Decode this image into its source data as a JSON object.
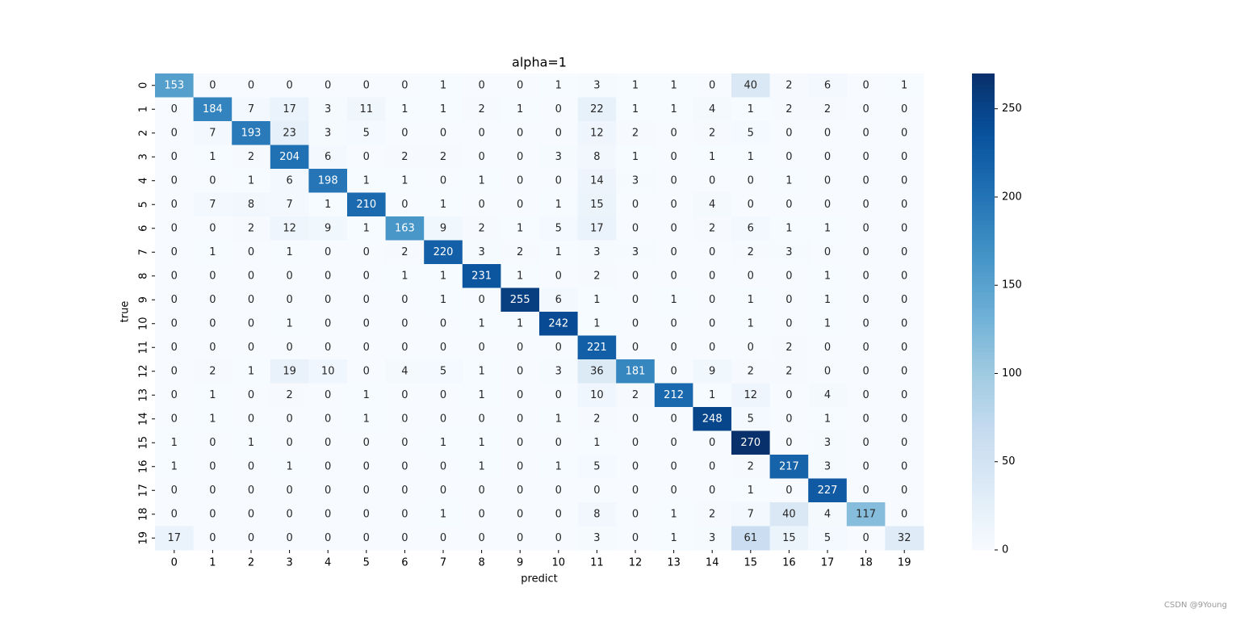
{
  "chart_data": {
    "type": "heatmap",
    "title": "alpha=1",
    "x_label": "predict",
    "y_label": "true",
    "x_categories": [
      "0",
      "1",
      "2",
      "3",
      "4",
      "5",
      "6",
      "7",
      "8",
      "9",
      "10",
      "11",
      "12",
      "13",
      "14",
      "15",
      "16",
      "17",
      "18",
      "19"
    ],
    "y_categories": [
      "0",
      "1",
      "2",
      "3",
      "4",
      "5",
      "6",
      "7",
      "8",
      "9",
      "10",
      "11",
      "12",
      "13",
      "14",
      "15",
      "16",
      "17",
      "18",
      "19"
    ],
    "values": [
      [
        153,
        0,
        0,
        0,
        0,
        0,
        0,
        1,
        0,
        0,
        1,
        3,
        1,
        1,
        0,
        40,
        2,
        6,
        0,
        1
      ],
      [
        0,
        184,
        7,
        17,
        3,
        11,
        1,
        1,
        2,
        1,
        0,
        22,
        1,
        1,
        4,
        1,
        2,
        2,
        0,
        0
      ],
      [
        0,
        7,
        193,
        23,
        3,
        5,
        0,
        0,
        0,
        0,
        0,
        12,
        2,
        0,
        2,
        5,
        0,
        0,
        0,
        0
      ],
      [
        0,
        1,
        2,
        204,
        6,
        0,
        2,
        2,
        0,
        0,
        3,
        8,
        1,
        0,
        1,
        1,
        0,
        0,
        0,
        0
      ],
      [
        0,
        0,
        1,
        6,
        198,
        1,
        1,
        0,
        1,
        0,
        0,
        14,
        3,
        0,
        0,
        0,
        1,
        0,
        0,
        0
      ],
      [
        0,
        7,
        8,
        7,
        1,
        210,
        0,
        1,
        0,
        0,
        1,
        15,
        0,
        0,
        4,
        0,
        0,
        0,
        0,
        0
      ],
      [
        0,
        0,
        2,
        12,
        9,
        1,
        163,
        9,
        2,
        1,
        5,
        17,
        0,
        0,
        2,
        6,
        1,
        1,
        0,
        0
      ],
      [
        0,
        1,
        0,
        1,
        0,
        0,
        2,
        220,
        3,
        2,
        1,
        3,
        3,
        0,
        0,
        2,
        3,
        0,
        0,
        0
      ],
      [
        0,
        0,
        0,
        0,
        0,
        0,
        1,
        1,
        231,
        1,
        0,
        2,
        0,
        0,
        0,
        0,
        0,
        1,
        0,
        0
      ],
      [
        0,
        0,
        0,
        0,
        0,
        0,
        0,
        1,
        0,
        255,
        6,
        1,
        0,
        1,
        0,
        1,
        0,
        1,
        0,
        0
      ],
      [
        0,
        0,
        0,
        1,
        0,
        0,
        0,
        0,
        1,
        1,
        242,
        1,
        0,
        0,
        0,
        1,
        0,
        1,
        0,
        0
      ],
      [
        0,
        0,
        0,
        0,
        0,
        0,
        0,
        0,
        0,
        0,
        0,
        221,
        0,
        0,
        0,
        0,
        2,
        0,
        0,
        0
      ],
      [
        0,
        2,
        1,
        19,
        10,
        0,
        4,
        5,
        1,
        0,
        3,
        36,
        181,
        0,
        9,
        2,
        2,
        0,
        0,
        0
      ],
      [
        0,
        1,
        0,
        2,
        0,
        1,
        0,
        0,
        1,
        0,
        0,
        10,
        2,
        212,
        1,
        12,
        0,
        4,
        0,
        0
      ],
      [
        0,
        1,
        0,
        0,
        0,
        1,
        0,
        0,
        0,
        0,
        1,
        2,
        0,
        0,
        248,
        5,
        0,
        1,
        0,
        0
      ],
      [
        1,
        0,
        1,
        0,
        0,
        0,
        0,
        1,
        1,
        0,
        0,
        1,
        0,
        0,
        0,
        270,
        0,
        3,
        0,
        0
      ],
      [
        1,
        0,
        0,
        1,
        0,
        0,
        0,
        0,
        1,
        0,
        1,
        5,
        0,
        0,
        0,
        2,
        217,
        3,
        0,
        0
      ],
      [
        0,
        0,
        0,
        0,
        0,
        0,
        0,
        0,
        0,
        0,
        0,
        0,
        0,
        0,
        0,
        1,
        0,
        227,
        0,
        0
      ],
      [
        0,
        0,
        0,
        0,
        0,
        0,
        0,
        1,
        0,
        0,
        0,
        8,
        0,
        1,
        2,
        7,
        40,
        4,
        117,
        0
      ],
      [
        17,
        0,
        0,
        0,
        0,
        0,
        0,
        0,
        0,
        0,
        0,
        3,
        0,
        1,
        3,
        61,
        15,
        5,
        0,
        32
      ]
    ],
    "colormap": [
      "#f7fbff",
      "#deebf7",
      "#c6dbef",
      "#9ecae1",
      "#6baed6",
      "#4292c6",
      "#2171b5",
      "#08519c",
      "#08306b"
    ],
    "clim": [
      0,
      270
    ],
    "cticks": [
      0,
      50,
      100,
      150,
      200,
      250
    ]
  },
  "watermark": "CSDN @9Young"
}
